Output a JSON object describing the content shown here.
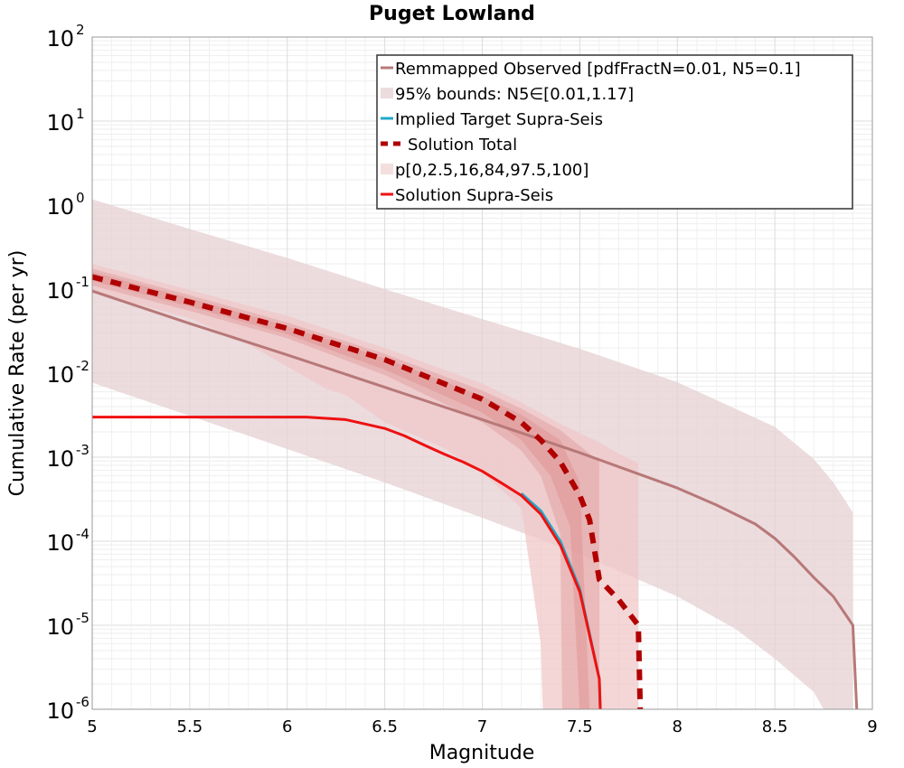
{
  "chart_data": {
    "type": "line",
    "title": "Puget Lowland",
    "xlabel": "Magnitude",
    "ylabel": "Cumulative Rate (per yr)",
    "xlim": [
      5,
      9
    ],
    "ylim": [
      1e-06,
      100
    ],
    "yscale": "log",
    "grid": true,
    "legend_position": "top-right",
    "x_ticks": [
      "5",
      "5.5",
      "6",
      "6.5",
      "7",
      "7.5",
      "8",
      "8.5",
      "9"
    ],
    "y_ticks": [
      {
        "value": 1e-06,
        "base": "10",
        "exp": "-6"
      },
      {
        "value": 1e-05,
        "base": "10",
        "exp": "-5"
      },
      {
        "value": 0.0001,
        "base": "10",
        "exp": "-4"
      },
      {
        "value": 0.001,
        "base": "10",
        "exp": "-3"
      },
      {
        "value": 0.01,
        "base": "10",
        "exp": "-2"
      },
      {
        "value": 0.1,
        "base": "10",
        "exp": "-1"
      },
      {
        "value": 1,
        "base": "10",
        "exp": "0"
      },
      {
        "value": 10,
        "base": "10",
        "exp": "1"
      },
      {
        "value": 100,
        "base": "10",
        "exp": "2"
      }
    ],
    "bands": [
      {
        "name": "95% bounds: N5∈[0.01,1.17]",
        "color": "#e6d0d3",
        "opacity": 0.75,
        "upper": [
          [
            5,
            1.17
          ],
          [
            5.5,
            0.52
          ],
          [
            6,
            0.235
          ],
          [
            6.5,
            0.1
          ],
          [
            7,
            0.044
          ],
          [
            7.5,
            0.0195
          ],
          [
            8,
            0.0078
          ],
          [
            8.5,
            0.0023
          ],
          [
            8.7,
            0.00095
          ],
          [
            8.8,
            0.0005
          ],
          [
            8.9,
            0.00022
          ],
          [
            8.9,
            1e-06
          ]
        ],
        "lower": [
          [
            5,
            0.0077
          ],
          [
            5.5,
            0.0031
          ],
          [
            6,
            0.00125
          ],
          [
            6.5,
            0.0005
          ],
          [
            7,
            0.00019
          ],
          [
            7.5,
            7e-05
          ],
          [
            8,
            2.2e-05
          ],
          [
            8.3,
            9e-06
          ],
          [
            8.5,
            4e-06
          ],
          [
            8.7,
            1.6e-06
          ],
          [
            8.75,
            1e-06
          ]
        ]
      },
      {
        "name": "p[0,2.5,16,84,97.5,100]",
        "color": "#f0c8c8",
        "opacity": 0.75,
        "upper": [
          [
            5,
            0.2
          ],
          [
            5.5,
            0.098
          ],
          [
            6,
            0.048
          ],
          [
            6.5,
            0.02
          ],
          [
            7,
            0.0075
          ],
          [
            7.2,
            0.0045
          ],
          [
            7.4,
            0.0025
          ],
          [
            7.6,
            0.0015
          ],
          [
            7.7,
            0.0011
          ],
          [
            7.8,
            0.00085
          ],
          [
            7.8,
            1e-06
          ]
        ],
        "lower": [
          [
            5,
            0.09
          ],
          [
            5.3,
            0.06
          ],
          [
            5.5,
            0.045
          ],
          [
            5.8,
            0.022
          ],
          [
            6,
            0.012
          ],
          [
            6.2,
            0.0065
          ],
          [
            6.3,
            0.0055
          ],
          [
            6.5,
            0.0026
          ],
          [
            6.8,
            0.0013
          ],
          [
            7,
            0.00065
          ],
          [
            7.2,
            0.00025
          ],
          [
            7.3,
            6e-06
          ],
          [
            7.31,
            1e-06
          ]
        ]
      },
      {
        "name": "p[0,2.5,16,84,97.5,100]",
        "color": "#e09a9a",
        "opacity": 0.45,
        "upper": [
          [
            5,
            0.175
          ],
          [
            5.5,
            0.085
          ],
          [
            6,
            0.04
          ],
          [
            6.5,
            0.017
          ],
          [
            7,
            0.0062
          ],
          [
            7.2,
            0.0038
          ],
          [
            7.4,
            0.0021
          ],
          [
            7.55,
            0.0011
          ],
          [
            7.6,
            0.0009
          ],
          [
            7.6,
            1e-06
          ]
        ],
        "lower": [
          [
            5,
            0.11
          ],
          [
            5.5,
            0.055
          ],
          [
            6,
            0.026
          ],
          [
            6.5,
            0.0095
          ],
          [
            7,
            0.0026
          ],
          [
            7.2,
            0.0012
          ],
          [
            7.3,
            0.0006
          ],
          [
            7.4,
            0.00012
          ],
          [
            7.41,
            1e-06
          ]
        ]
      },
      {
        "name": "p[0,2.5,16,84,97.5,100]",
        "color": "#d98282",
        "opacity": 0.35,
        "upper": [
          [
            5,
            0.16
          ],
          [
            5.5,
            0.078
          ],
          [
            6,
            0.036
          ],
          [
            6.5,
            0.015
          ],
          [
            7,
            0.0053
          ],
          [
            7.2,
            0.0032
          ],
          [
            7.4,
            0.0016
          ],
          [
            7.5,
            0.0005
          ],
          [
            7.55,
            1e-06
          ]
        ],
        "lower": [
          [
            5,
            0.125
          ],
          [
            5.5,
            0.062
          ],
          [
            6,
            0.029
          ],
          [
            6.5,
            0.011
          ],
          [
            7,
            0.0034
          ],
          [
            7.2,
            0.0016
          ],
          [
            7.35,
            0.0006
          ],
          [
            7.45,
            0.00015
          ],
          [
            7.5,
            1e-06
          ]
        ]
      }
    ],
    "series": [
      {
        "name": "Remmapped Observed [pdfFractN=0.01, N5=0.1]",
        "color": "#b87878",
        "width": 3,
        "dash": "",
        "points": [
          [
            5,
            0.095
          ],
          [
            5.5,
            0.039
          ],
          [
            6,
            0.0165
          ],
          [
            6.5,
            0.0068
          ],
          [
            7,
            0.0028
          ],
          [
            7.5,
            0.00113
          ],
          [
            8,
            0.00043
          ],
          [
            8.2,
            0.00027
          ],
          [
            8.4,
            0.00016
          ],
          [
            8.5,
            0.000108
          ],
          [
            8.6,
            6.5e-05
          ],
          [
            8.7,
            3.7e-05
          ],
          [
            8.8,
            2.2e-05
          ],
          [
            8.9,
            1e-05
          ],
          [
            8.92,
            1e-06
          ]
        ]
      },
      {
        "name": "Implied Target Supra-Seis",
        "color": "#22a8c8",
        "width": 3,
        "dash": "",
        "points": [
          [
            7.2,
            0.00037
          ],
          [
            7.3,
            0.00023
          ],
          [
            7.4,
            0.0001
          ],
          [
            7.5,
            2.7e-05
          ],
          [
            7.6,
            2.3e-06
          ],
          [
            7.605,
            1e-06
          ]
        ]
      },
      {
        "name": "Solution Supra-Seis",
        "color": "#ee1111",
        "width": 3,
        "dash": "",
        "points": [
          [
            5,
            0.003
          ],
          [
            5.5,
            0.003
          ],
          [
            6,
            0.003
          ],
          [
            6.1,
            0.003
          ],
          [
            6.3,
            0.0028
          ],
          [
            6.5,
            0.0022
          ],
          [
            6.6,
            0.0018
          ],
          [
            6.7,
            0.0014
          ],
          [
            6.8,
            0.0011
          ],
          [
            6.9,
            0.00088
          ],
          [
            7,
            0.00068
          ],
          [
            7.1,
            0.00049
          ],
          [
            7.2,
            0.00035
          ],
          [
            7.3,
            0.00021
          ],
          [
            7.4,
            9e-05
          ],
          [
            7.5,
            2.5e-05
          ],
          [
            7.6,
            2.3e-06
          ],
          [
            7.605,
            1e-06
          ]
        ]
      },
      {
        "name": "Solution Total",
        "color": "#b00000",
        "width": 6,
        "dash": "12,9",
        "points": [
          [
            5,
            0.14
          ],
          [
            5.5,
            0.07
          ],
          [
            6,
            0.034
          ],
          [
            6.5,
            0.0145
          ],
          [
            7,
            0.0049
          ],
          [
            7.2,
            0.0026
          ],
          [
            7.3,
            0.0016
          ],
          [
            7.4,
            0.00088
          ],
          [
            7.5,
            0.00035
          ],
          [
            7.55,
            0.00018
          ],
          [
            7.6,
            3.5e-05
          ],
          [
            7.7,
            2e-05
          ],
          [
            7.8,
            1e-05
          ],
          [
            7.81,
            1e-06
          ]
        ]
      }
    ],
    "legend": [
      {
        "label": "Remmapped Observed [pdfFractN=0.01, N5=0.1]",
        "kind": "line",
        "color": "#b87878",
        "dash": ""
      },
      {
        "label": "95% bounds: N5∈[0.01,1.17]",
        "kind": "patch",
        "color": "#ecdcde",
        "dash": ""
      },
      {
        "label": "Implied Target Supra-Seis",
        "kind": "line",
        "color": "#22a8c8",
        "dash": ""
      },
      {
        "label": "Solution Total",
        "kind": "line",
        "color": "#b00000",
        "dash": "8,6"
      },
      {
        "label": "p[0,2.5,16,84,97.5,100]",
        "kind": "patch",
        "color": "#f4dede",
        "dash": ""
      },
      {
        "label": "Solution Supra-Seis",
        "kind": "line",
        "color": "#ee1111",
        "dash": ""
      }
    ]
  }
}
